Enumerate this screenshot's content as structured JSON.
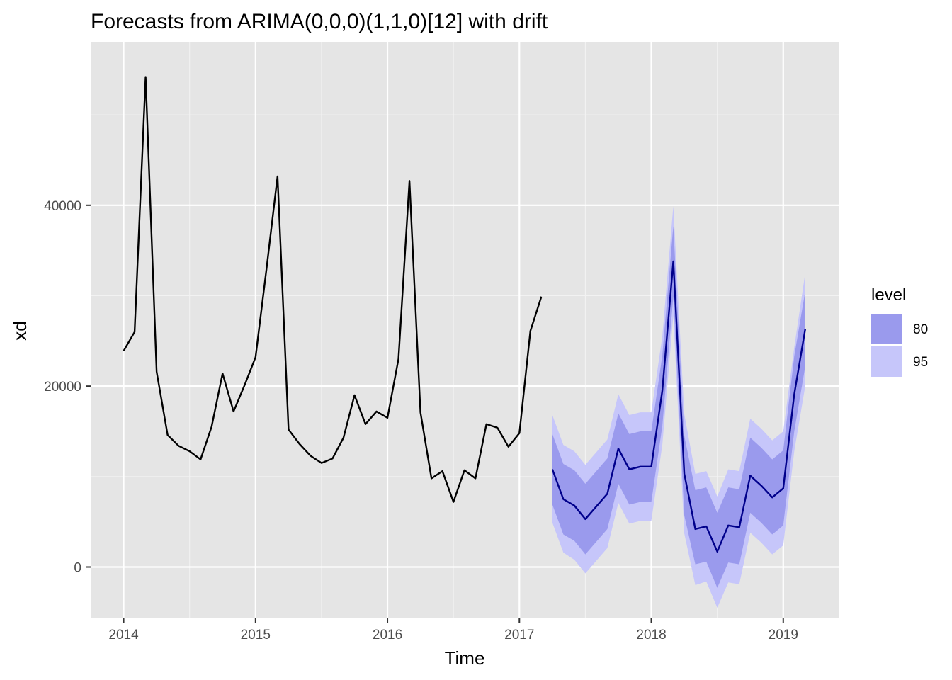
{
  "chart_data": {
    "type": "line",
    "title": "Forecasts from ARIMA(0,0,0)(1,1,0)[12] with drift",
    "xlabel": "Time",
    "ylabel": "xd",
    "xlim": [
      2013.75,
      2019.42
    ],
    "ylim": [
      -5600,
      58000
    ],
    "x_ticks": [
      2014,
      2015,
      2016,
      2017,
      2018,
      2019
    ],
    "x_tick_labels": [
      "2014",
      "2015",
      "2016",
      "2017",
      "2018",
      "2019"
    ],
    "y_ticks": [
      0,
      20000,
      40000
    ],
    "y_tick_labels": [
      "0",
      "20000",
      "40000"
    ],
    "grid": true,
    "legend": {
      "title": "level",
      "position": "right",
      "entries": [
        {
          "label": "80",
          "color": "#9a9aed"
        },
        {
          "label": "95",
          "color": "#c6c6fa"
        }
      ]
    },
    "colors": {
      "panel": "#e5e5e5",
      "grid_major": "#ffffff",
      "grid_minor": "#f2f2f2",
      "history_line": "#000000",
      "forecast_line": "#00008b",
      "band80": "#9a9aed",
      "band95": "#c6c6fa",
      "tick_label": "#4d4d4d"
    },
    "history": {
      "start": [
        2014,
        1
      ],
      "frequency": 12,
      "values": [
        23900,
        26000,
        54200,
        21600,
        14600,
        13400,
        12800,
        11900,
        15500,
        21400,
        17200,
        20100,
        23200,
        33000,
        43200,
        15200,
        13600,
        12300,
        11500,
        12000,
        14300,
        19000,
        15800,
        17200,
        16500,
        23000,
        42700,
        17100,
        9800,
        10600,
        7200,
        10700,
        9800,
        15800,
        15400,
        13300,
        14800,
        26100,
        29900
      ]
    },
    "forecast": {
      "start": [
        2017,
        4
      ],
      "frequency": 12,
      "mean": [
        10800,
        7500,
        6800,
        5300,
        6700,
        8100,
        13100,
        10800,
        11100,
        11100,
        19500,
        33800,
        10300,
        4200,
        4500,
        1700,
        4600,
        4400,
        10100,
        9000,
        7700,
        8700,
        19100,
        26300
      ],
      "lo80": [
        6900,
        3600,
        2900,
        1400,
        2800,
        4200,
        9200,
        6900,
        7200,
        7200,
        15600,
        29900,
        5700,
        300,
        600,
        -2300,
        500,
        300,
        6000,
        4900,
        3600,
        4600,
        15000,
        22200
      ],
      "hi80": [
        14700,
        11400,
        10700,
        9200,
        10600,
        12000,
        17000,
        14700,
        15000,
        15000,
        23400,
        37700,
        14500,
        8500,
        8800,
        6000,
        8800,
        8600,
        14300,
        13200,
        11900,
        12900,
        23300,
        30500
      ],
      "lo95": [
        4900,
        1600,
        800,
        -700,
        700,
        2100,
        7100,
        4800,
        5100,
        5100,
        13500,
        27800,
        3700,
        -2000,
        -1600,
        -4500,
        -1700,
        -1900,
        3800,
        2700,
        1400,
        2400,
        12800,
        20000
      ],
      "hi95": [
        16800,
        13500,
        12800,
        11300,
        12700,
        14100,
        19100,
        16800,
        17100,
        17100,
        25500,
        39900,
        16900,
        10300,
        10600,
        7800,
        10800,
        10600,
        16400,
        15300,
        14000,
        15000,
        24300,
        32500
      ]
    }
  }
}
